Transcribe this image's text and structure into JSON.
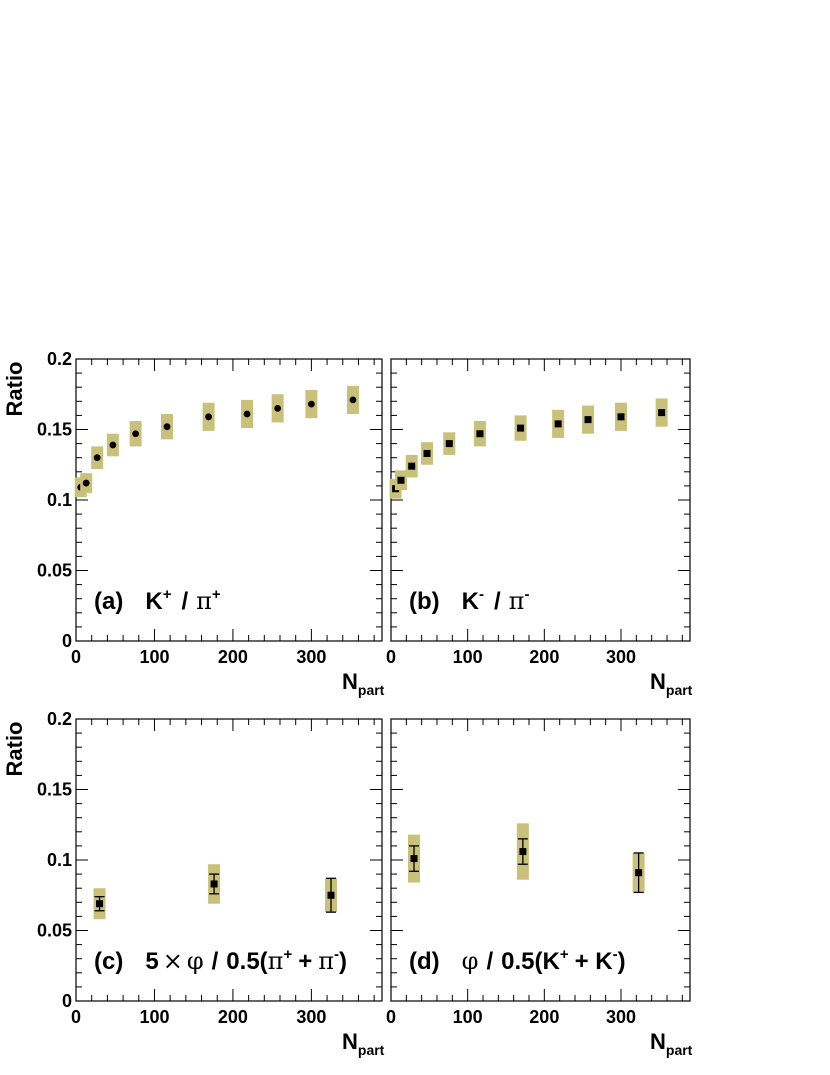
{
  "colors": {
    "band": "#c9c07a",
    "frame": "#000000",
    "marker": "#000000"
  },
  "chart_data": [
    {
      "type": "scatter",
      "id": "a",
      "label": {
        "tag": "(a)",
        "K": "K",
        "Ksup": "+",
        "sep": "/",
        "pi": "π",
        "pisup": "+"
      },
      "xlabel": {
        "main": "N",
        "sub": "part"
      },
      "ylabel": "Ratio",
      "xlim": [
        0,
        390
      ],
      "ylim": [
        0,
        0.2
      ],
      "xticks": [
        "0",
        "100",
        "200",
        "300"
      ],
      "yticks": [
        "0",
        "0.05",
        "0.1",
        "0.15",
        "0.2"
      ],
      "marker": "circle",
      "points": [
        {
          "x": 6,
          "y": 0.109,
          "sys": 0.007
        },
        {
          "x": 13,
          "y": 0.112,
          "sys": 0.007
        },
        {
          "x": 27,
          "y": 0.13,
          "sys": 0.008
        },
        {
          "x": 47,
          "y": 0.139,
          "sys": 0.008
        },
        {
          "x": 76,
          "y": 0.147,
          "sys": 0.009
        },
        {
          "x": 116,
          "y": 0.152,
          "sys": 0.009
        },
        {
          "x": 169,
          "y": 0.159,
          "sys": 0.01
        },
        {
          "x": 218,
          "y": 0.161,
          "sys": 0.01
        },
        {
          "x": 257,
          "y": 0.165,
          "sys": 0.01
        },
        {
          "x": 300,
          "y": 0.168,
          "sys": 0.01
        },
        {
          "x": 353,
          "y": 0.171,
          "sys": 0.01
        }
      ]
    },
    {
      "type": "scatter",
      "id": "b",
      "label": {
        "tag": "(b)",
        "K": "K",
        "Ksup": "-",
        "sep": "/",
        "pi": "π",
        "pisup": "-"
      },
      "xlabel": {
        "main": "N",
        "sub": "part"
      },
      "ylabel": "",
      "xlim": [
        0,
        390
      ],
      "ylim": [
        0,
        0.2
      ],
      "xticks": [
        "0",
        "100",
        "200",
        "300"
      ],
      "yticks": [],
      "marker": "square",
      "points": [
        {
          "x": 6,
          "y": 0.108,
          "sys": 0.007
        },
        {
          "x": 13,
          "y": 0.114,
          "sys": 0.007
        },
        {
          "x": 27,
          "y": 0.124,
          "sys": 0.008
        },
        {
          "x": 47,
          "y": 0.133,
          "sys": 0.008
        },
        {
          "x": 76,
          "y": 0.14,
          "sys": 0.008
        },
        {
          "x": 116,
          "y": 0.147,
          "sys": 0.009
        },
        {
          "x": 169,
          "y": 0.151,
          "sys": 0.009
        },
        {
          "x": 218,
          "y": 0.154,
          "sys": 0.01
        },
        {
          "x": 257,
          "y": 0.157,
          "sys": 0.01
        },
        {
          "x": 300,
          "y": 0.159,
          "sys": 0.01
        },
        {
          "x": 353,
          "y": 0.162,
          "sys": 0.01
        }
      ]
    },
    {
      "type": "scatter",
      "id": "c",
      "label": {
        "tag": "(c)",
        "pre": "5",
        "times": "×",
        "phi": "φ",
        "sep": "/",
        "mid": "0.5(",
        "pi1": "π",
        "pi1sup": "+",
        "plus": "+",
        "pi2": "π",
        "pi2sup": "-",
        "close": ")"
      },
      "xlabel": {
        "main": "N",
        "sub": "part"
      },
      "ylabel": "Ratio",
      "xlim": [
        0,
        390
      ],
      "ylim": [
        0,
        0.2
      ],
      "xticks": [
        "0",
        "100",
        "200",
        "300"
      ],
      "yticks": [
        "0",
        "0.05",
        "0.1",
        "0.15",
        "0.2"
      ],
      "marker": "square",
      "points": [
        {
          "x": 30,
          "y": 0.069,
          "err": 0.005,
          "sys": 0.011
        },
        {
          "x": 176,
          "y": 0.083,
          "err": 0.007,
          "sys": 0.014
        },
        {
          "x": 325,
          "y": 0.075,
          "err": 0.012,
          "sys": 0.012
        }
      ]
    },
    {
      "type": "scatter",
      "id": "d",
      "label": {
        "tag": "(d)",
        "phi": "φ",
        "sep": "/",
        "mid": "0.5(K",
        "k1sup": "+",
        "plus": "+ K",
        "k2sup": "-",
        "close": ")"
      },
      "xlabel": {
        "main": "N",
        "sub": "part"
      },
      "ylabel": "",
      "xlim": [
        0,
        390
      ],
      "ylim": [
        0,
        0.2
      ],
      "xticks": [
        "0",
        "100",
        "200",
        "300"
      ],
      "yticks": [],
      "marker": "square",
      "points": [
        {
          "x": 30,
          "y": 0.101,
          "err": 0.009,
          "sys": 0.017
        },
        {
          "x": 172,
          "y": 0.106,
          "err": 0.009,
          "sys": 0.02
        },
        {
          "x": 323,
          "y": 0.091,
          "err": 0.014,
          "sys": 0.014
        }
      ]
    }
  ]
}
